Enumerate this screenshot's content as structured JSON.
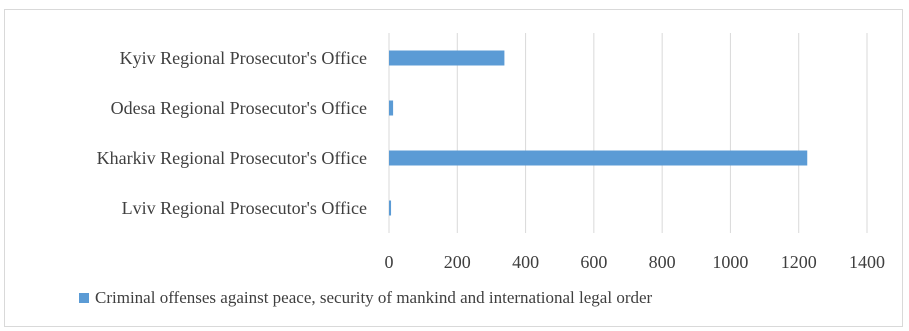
{
  "chart_data": {
    "type": "bar",
    "orientation": "horizontal",
    "categories": [
      "Kyiv Regional Prosecutor's Office",
      "Odesa Regional Prosecutor's Office",
      "Kharkiv Regional Prosecutor's Office",
      "Lviv Regional Prosecutor's Office"
    ],
    "series": [
      {
        "name": "Criminal offenses against peace, security of mankind and international legal order",
        "values": [
          338,
          12,
          1225,
          6
        ],
        "color": "#5b9bd5"
      }
    ],
    "x_ticks": [
      "0",
      "200",
      "400",
      "600",
      "800",
      "1000",
      "1200",
      "1400"
    ],
    "xlim": [
      0,
      1400
    ],
    "grid": "vertical",
    "legend_position": "bottom"
  }
}
